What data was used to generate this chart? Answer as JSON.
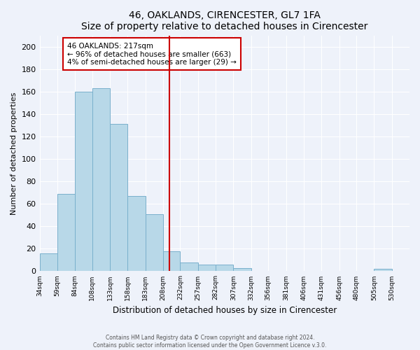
{
  "title": "46, OAKLANDS, CIRENCESTER, GL7 1FA",
  "subtitle": "Size of property relative to detached houses in Cirencester",
  "xlabel": "Distribution of detached houses by size in Cirencester",
  "ylabel": "Number of detached properties",
  "bin_labels": [
    "34sqm",
    "59sqm",
    "84sqm",
    "108sqm",
    "133sqm",
    "158sqm",
    "183sqm",
    "208sqm",
    "232sqm",
    "257sqm",
    "282sqm",
    "307sqm",
    "332sqm",
    "356sqm",
    "381sqm",
    "406sqm",
    "431sqm",
    "456sqm",
    "480sqm",
    "505sqm",
    "530sqm"
  ],
  "bar_heights": [
    16,
    69,
    160,
    163,
    131,
    67,
    51,
    18,
    8,
    6,
    6,
    3,
    0,
    0,
    0,
    0,
    0,
    0,
    0,
    2,
    0
  ],
  "bar_color": "#b8d8e8",
  "bar_edge_color": "#7ab0cc",
  "vline_color": "#cc0000",
  "ylim": [
    0,
    210
  ],
  "yticks": [
    0,
    20,
    40,
    60,
    80,
    100,
    120,
    140,
    160,
    180,
    200
  ],
  "annotation_title": "46 OAKLANDS: 217sqm",
  "annotation_line1": "← 96% of detached houses are smaller (663)",
  "annotation_line2": "4% of semi-detached houses are larger (29) →",
  "annotation_box_color": "#ffffff",
  "annotation_box_edge": "#cc0000",
  "footer1": "Contains HM Land Registry data © Crown copyright and database right 2024.",
  "footer2": "Contains public sector information licensed under the Open Government Licence v.3.0.",
  "background_color": "#eef2fa",
  "plot_background": "#eef2fa",
  "grid_color": "#ffffff",
  "figwidth": 6.0,
  "figheight": 5.0,
  "dpi": 100
}
